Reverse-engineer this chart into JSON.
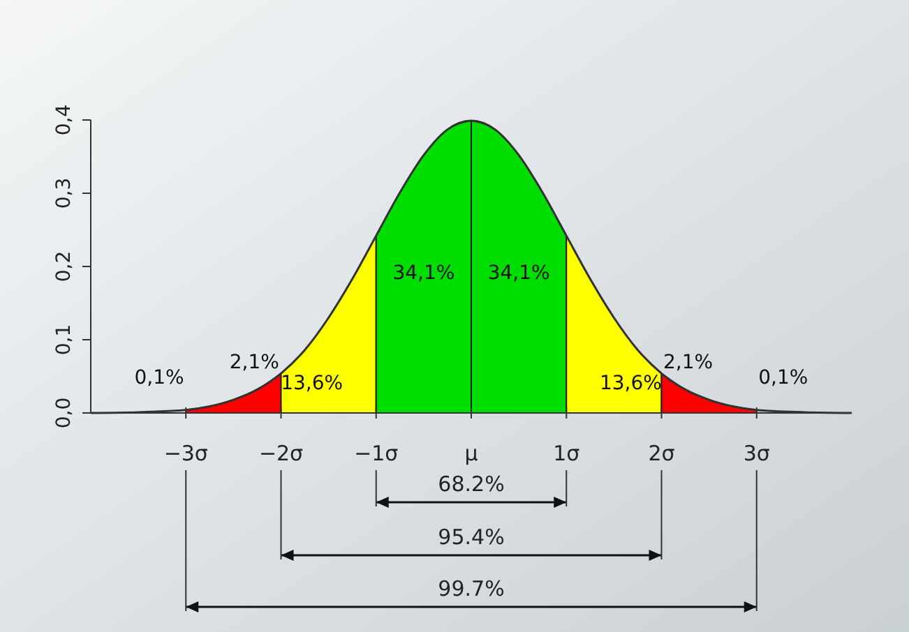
{
  "chart_data": {
    "type": "area",
    "xlim": [
      -4,
      4
    ],
    "ylim": [
      0,
      0.4
    ],
    "xticks": [
      {
        "value": -3,
        "label": "−3σ"
      },
      {
        "value": -2,
        "label": "−2σ"
      },
      {
        "value": -1,
        "label": "−1σ"
      },
      {
        "value": 0,
        "label": "μ"
      },
      {
        "value": 1,
        "label": "1σ"
      },
      {
        "value": 2,
        "label": "2σ"
      },
      {
        "value": 3,
        "label": "3σ"
      }
    ],
    "yticks": [
      {
        "value": 0,
        "label": "0,0"
      },
      {
        "value": 0.1,
        "label": "0,1"
      },
      {
        "value": 0.2,
        "label": "0,2"
      },
      {
        "value": 0.3,
        "label": "0,3"
      },
      {
        "value": 0.4,
        "label": "0,4"
      }
    ],
    "grid": false,
    "legend": false,
    "series": [
      {
        "color": "#ff0000",
        "x": [
          -3,
          -2.75,
          -2.5,
          -2.25,
          -2
        ],
        "values": [
          0.004,
          0.009,
          0.018,
          0.032,
          0.054
        ]
      },
      {
        "color": "#ffff00",
        "x": [
          -2,
          -1.75,
          -1.5,
          -1.25,
          -1
        ],
        "values": [
          0.054,
          0.086,
          0.13,
          0.183,
          0.242
        ]
      },
      {
        "color": "#00dd00",
        "x": [
          -1,
          -0.75,
          -0.5,
          -0.25,
          0
        ],
        "values": [
          0.242,
          0.301,
          0.352,
          0.387,
          0.399
        ]
      },
      {
        "color": "#00dd00",
        "x": [
          0,
          0.25,
          0.5,
          0.75,
          1
        ],
        "values": [
          0.399,
          0.387,
          0.352,
          0.301,
          0.242
        ]
      },
      {
        "color": "#ffff00",
        "x": [
          1,
          1.25,
          1.5,
          1.75,
          2
        ],
        "values": [
          0.242,
          0.183,
          0.13,
          0.086,
          0.054
        ]
      },
      {
        "color": "#ff0000",
        "x": [
          2,
          2.25,
          2.5,
          2.75,
          3
        ],
        "values": [
          0.054,
          0.032,
          0.018,
          0.009,
          0.004
        ]
      },
      {
        "type": "line",
        "color": "#333333",
        "x": [
          -4,
          -3.5,
          -3,
          -2.75,
          -2.5,
          -2.25,
          -2,
          -1.75,
          -1.5,
          -1.25,
          -1,
          -0.75,
          -0.5,
          -0.25,
          0,
          0.25,
          0.5,
          0.75,
          1,
          1.25,
          1.5,
          1.75,
          2,
          2.25,
          2.5,
          2.75,
          3,
          3.5,
          4
        ],
        "values": [
          0,
          0.001,
          0.004,
          0.009,
          0.018,
          0.032,
          0.054,
          0.086,
          0.13,
          0.183,
          0.242,
          0.301,
          0.352,
          0.387,
          0.399,
          0.387,
          0.352,
          0.301,
          0.242,
          0.183,
          0.13,
          0.086,
          0.054,
          0.032,
          0.018,
          0.009,
          0.004,
          0.001,
          0
        ]
      }
    ],
    "annotations": [
      "0,1%",
      "2,1%",
      "13,6%",
      "34,1%",
      "34,1%",
      "13,6%",
      "2,1%",
      "0,1%",
      "68.2%",
      "95.4%",
      "99.7%"
    ]
  }
}
